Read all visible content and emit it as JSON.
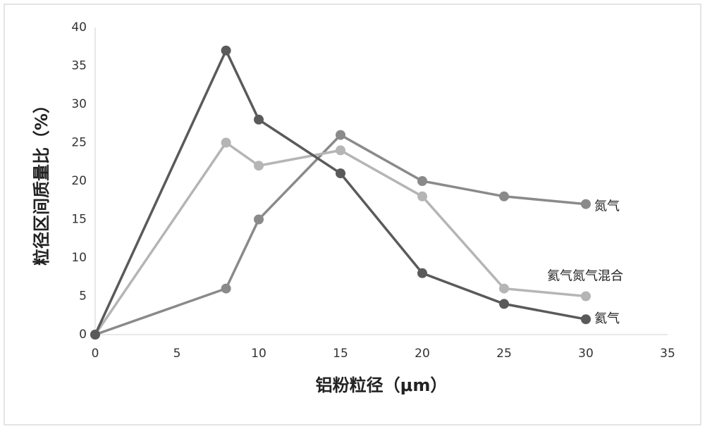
{
  "chart_data": {
    "type": "line",
    "x": [
      0,
      8,
      10,
      15,
      20,
      25,
      30
    ],
    "series": [
      {
        "name": "氮气",
        "color": "#8a8a8a",
        "values": [
          0,
          6,
          15,
          26,
          20,
          18,
          17
        ]
      },
      {
        "name": "氦气氮气混合",
        "color": "#b5b5b5",
        "values": [
          0,
          25,
          22,
          24,
          18,
          6,
          5
        ]
      },
      {
        "name": "氦气",
        "color": "#5a5a5a",
        "values": [
          0,
          37,
          28,
          21,
          8,
          4,
          2
        ]
      }
    ],
    "xlabel": "铝粉粒径（μm）",
    "ylabel": "粒径区间质量比（%）",
    "xlim": [
      0,
      35
    ],
    "xticks": [
      0,
      5,
      10,
      15,
      20,
      25,
      30,
      35
    ],
    "ylim": [
      0,
      40
    ],
    "yticks": [
      0,
      5,
      10,
      15,
      20,
      25,
      30,
      35,
      40
    ],
    "grid": false
  }
}
